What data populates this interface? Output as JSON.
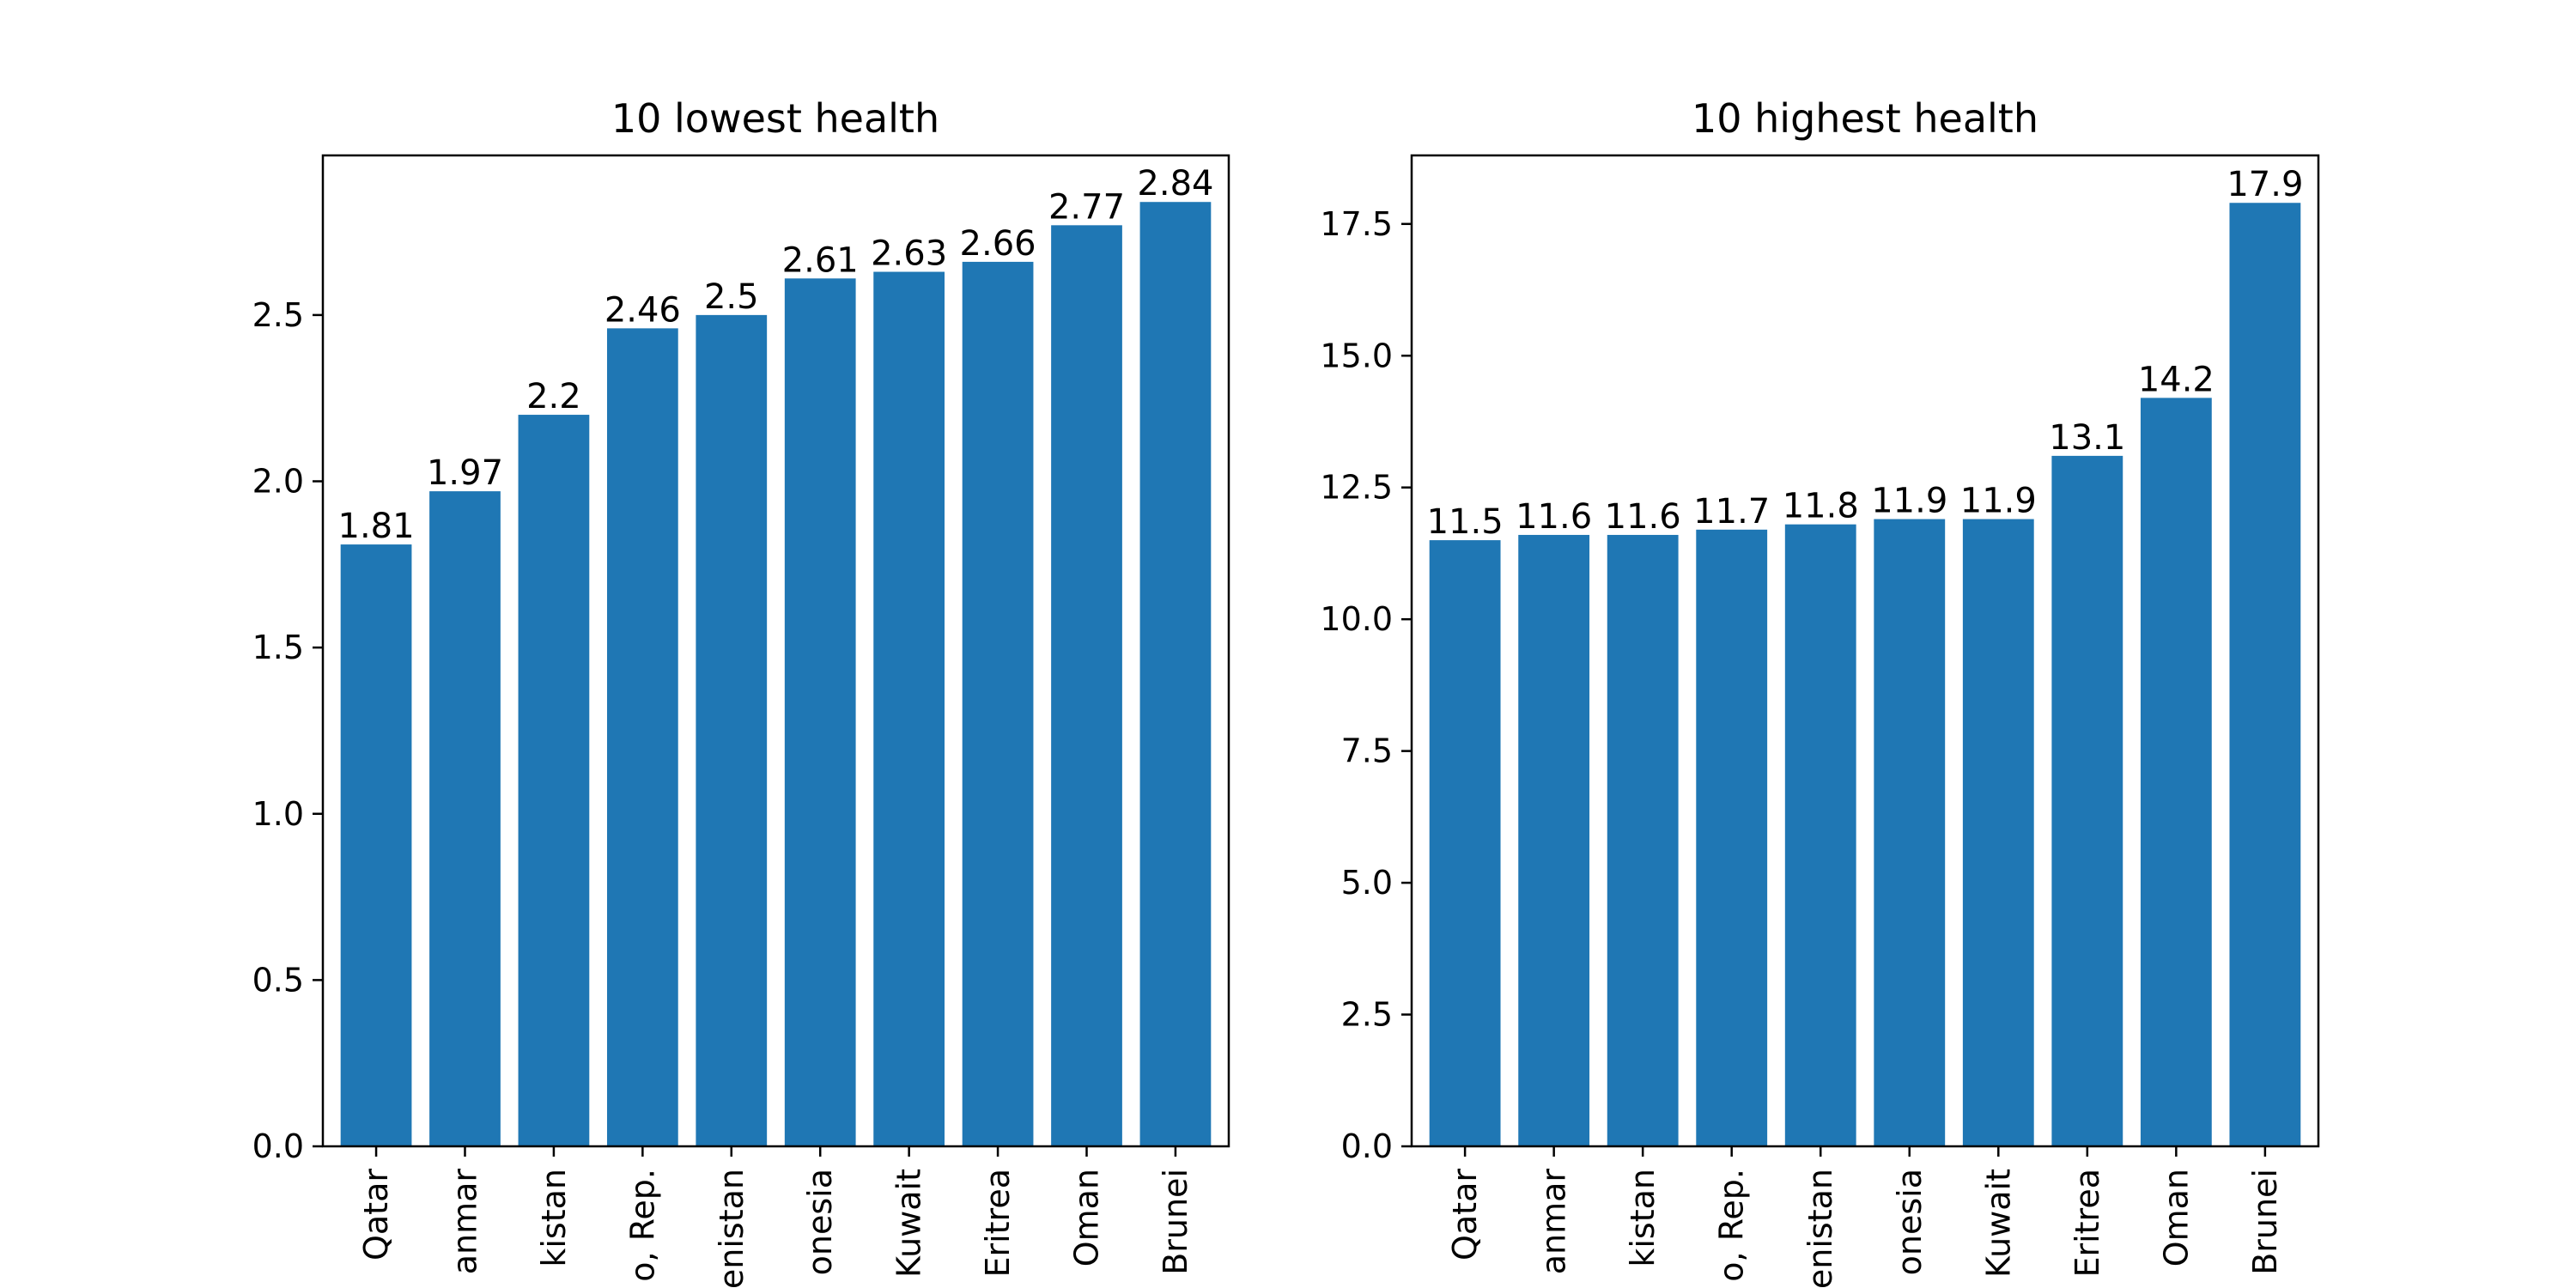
{
  "chart_data": [
    {
      "type": "bar",
      "title": "10 lowest health",
      "xlabel": "",
      "ylabel": "",
      "categories": [
        "Qatar",
        "Myanmar",
        "Pakistan",
        "Congo, Rep.",
        "Turkmenistan",
        "Indonesia",
        "Kuwait",
        "Eritrea",
        "Oman",
        "Brunei"
      ],
      "visible_tick_labels": [
        "Qatar",
        "anmar",
        "kistan",
        "o, Rep.",
        "enistan",
        "onesia",
        "Kuwait",
        "Eritrea",
        "Oman",
        "Brunei"
      ],
      "values": [
        1.81,
        1.97,
        2.2,
        2.46,
        2.5,
        2.61,
        2.63,
        2.66,
        2.77,
        2.84
      ],
      "data_labels": [
        "1.81",
        "1.97",
        "2.2",
        "2.46",
        "2.5",
        "2.61",
        "2.63",
        "2.66",
        "2.77",
        "2.84"
      ],
      "ylim": [
        0,
        2.98
      ],
      "yticks": [
        0.0,
        0.5,
        1.0,
        1.5,
        2.0,
        2.5
      ],
      "ytick_labels": [
        "0.0",
        "0.5",
        "1.0",
        "1.5",
        "2.0",
        "2.5"
      ],
      "bar_color": "#1f77b4",
      "grid": false
    },
    {
      "type": "bar",
      "title": "10 highest health",
      "xlabel": "",
      "ylabel": "",
      "categories": [
        "Qatar",
        "Myanmar",
        "Pakistan",
        "Congo, Rep.",
        "Turkmenistan",
        "Indonesia",
        "Kuwait",
        "Eritrea",
        "Oman",
        "Brunei"
      ],
      "visible_tick_labels": [
        "Qatar",
        "anmar",
        "kistan",
        "o, Rep.",
        "enistan",
        "onesia",
        "Kuwait",
        "Eritrea",
        "Oman",
        "Brunei"
      ],
      "values": [
        11.5,
        11.6,
        11.6,
        11.7,
        11.8,
        11.9,
        11.9,
        13.1,
        14.2,
        17.9
      ],
      "data_labels": [
        "11.5",
        "11.6",
        "11.6",
        "11.7",
        "11.8",
        "11.9",
        "11.9",
        "13.1",
        "14.2",
        "17.9"
      ],
      "ylim": [
        0,
        18.8
      ],
      "yticks": [
        0.0,
        2.5,
        5.0,
        7.5,
        10.0,
        12.5,
        15.0,
        17.5
      ],
      "ytick_labels": [
        "0.0",
        "2.5",
        "5.0",
        "7.5",
        "10.0",
        "12.5",
        "15.0",
        "17.5"
      ],
      "bar_color": "#1f77b4",
      "grid": false
    }
  ]
}
